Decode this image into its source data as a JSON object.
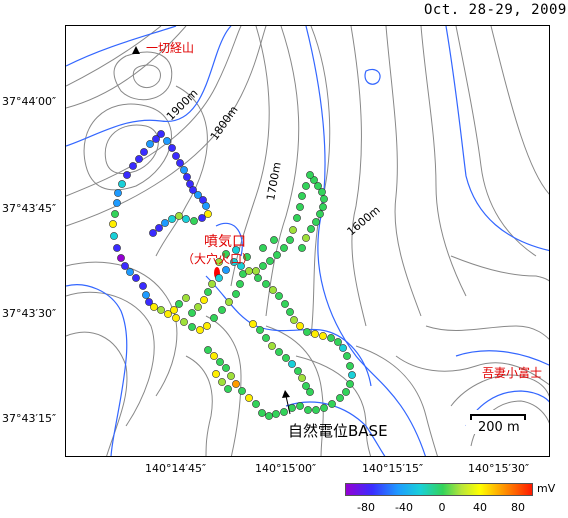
{
  "date": "Oct. 28-29, 2009",
  "lat_labels": [
    "37°44′00″",
    "37°43′45″",
    "37°43′30″",
    "37°43′15″"
  ],
  "lon_labels": [
    "140°14′45″",
    "140°15′00″",
    "140°15′15″",
    "140°15′30″"
  ],
  "contour_labels": [
    "1900m",
    "1800m",
    "1700m",
    "1600m"
  ],
  "places": {
    "peak": "一切経山",
    "vent": "噴気口",
    "vent_sub": "（大穴火口）",
    "fuji": "吾妻小富士",
    "base": "自然電位BASE"
  },
  "scale_label": "200 m",
  "colorbar": {
    "unit": "mV",
    "ticks": [
      "-80",
      "-40",
      "0",
      "40",
      "80"
    ],
    "colors": [
      "#9400d3",
      "#3a2cff",
      "#1e9bff",
      "#19d0d8",
      "#33d35a",
      "#b7e53a",
      "#ffff00",
      "#ff9b00",
      "#ff1a00"
    ]
  },
  "point_colors": {
    "purple": "#9400d3",
    "blue": "#3a2cff",
    "lblue": "#1e9bff",
    "cyan": "#19d0d8",
    "green": "#33d35a",
    "lgreen": "#9fe03a",
    "yellow": "#ffee00",
    "orange": "#ff9b00",
    "red": "#ff1a00"
  }
}
